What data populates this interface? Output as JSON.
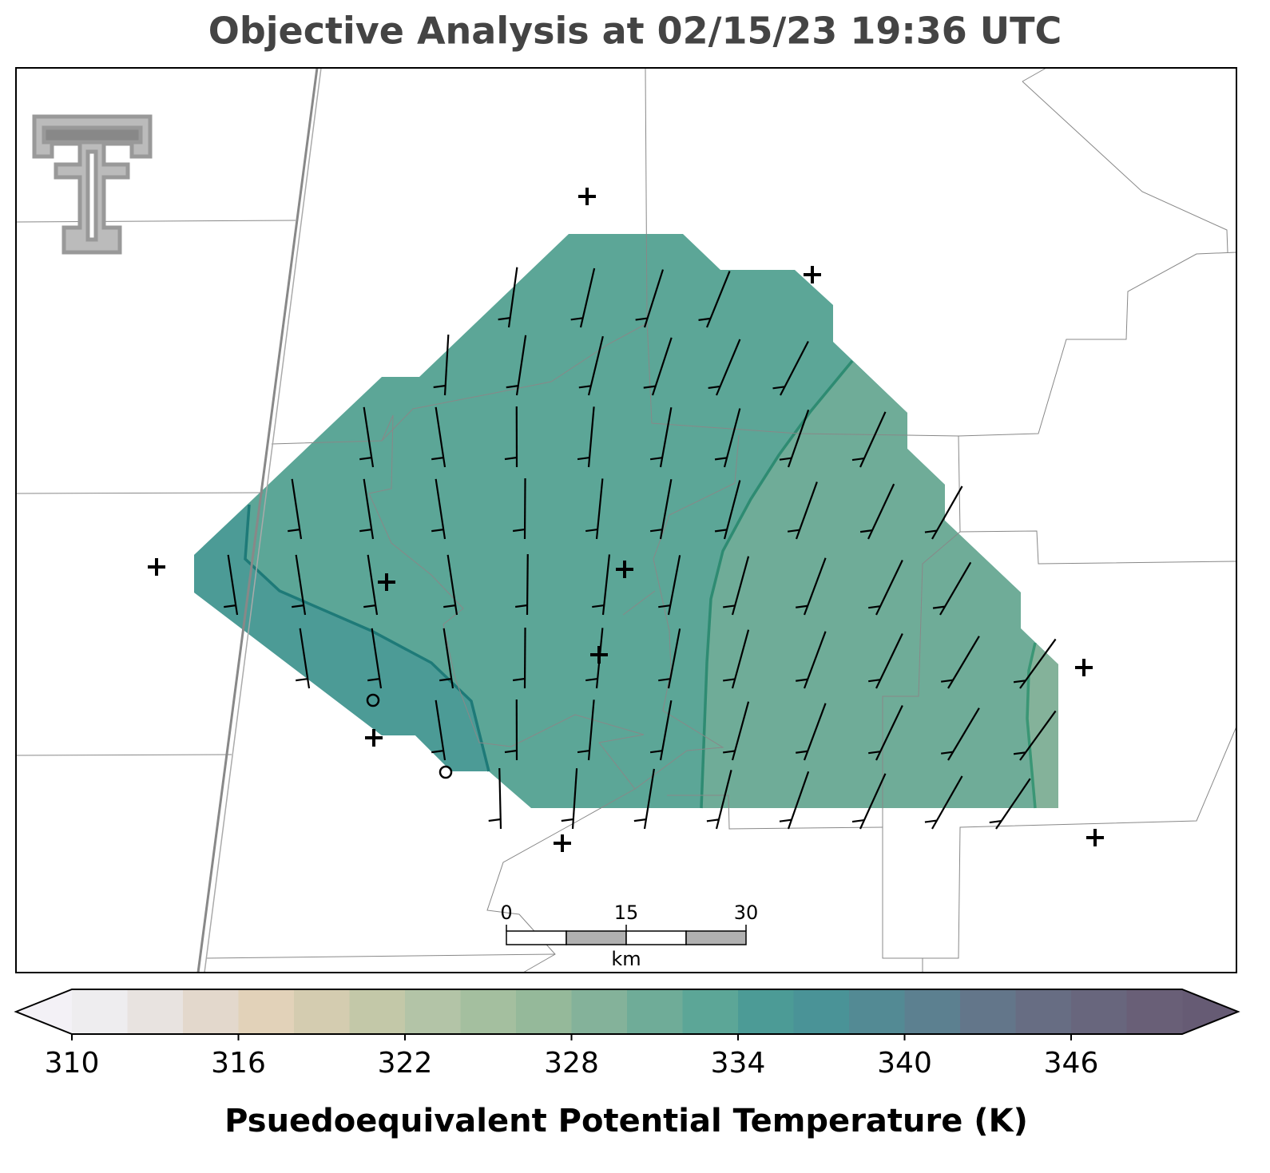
{
  "title": "Objective Analysis at 02/15/23 19:36 UTC",
  "colorbar": {
    "label": "Psuedoequivalent Potential Temperature (K)",
    "lim": [
      310,
      350
    ],
    "ticks": [
      310,
      316,
      322,
      328,
      334,
      340,
      346
    ],
    "colors": [
      "#eeedef",
      "#e8e3e0",
      "#e3d8cc",
      "#e2d2b9",
      "#d4ccb0",
      "#c3c8a8",
      "#b3c4a7",
      "#a4bf9f",
      "#95b99a",
      "#84b29a",
      "#6fac98",
      "#5ca697",
      "#4c9b96",
      "#4a9397",
      "#538a94",
      "#5c8090",
      "#63768a",
      "#676d83",
      "#68667d",
      "#695f77"
    ],
    "under_color": "#f3f1f6",
    "over_color": "#665b74"
  },
  "scale_bar": {
    "ticks": [
      0,
      15,
      30
    ],
    "unit": "km"
  }
}
